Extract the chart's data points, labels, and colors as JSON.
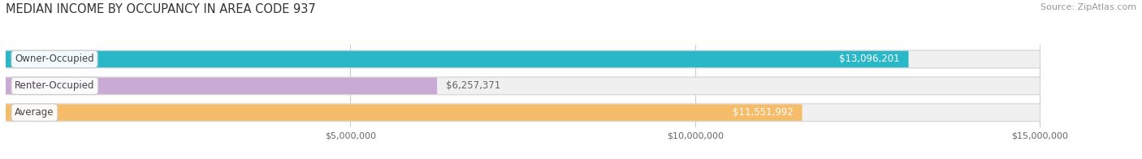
{
  "title": "MEDIAN INCOME BY OCCUPANCY IN AREA CODE 937",
  "source": "Source: ZipAtlas.com",
  "categories": [
    "Owner-Occupied",
    "Renter-Occupied",
    "Average"
  ],
  "values": [
    13096201,
    6257371,
    11551992
  ],
  "bar_colors": [
    "#2ab8c8",
    "#c9aad4",
    "#f5bc6a"
  ],
  "value_labels": [
    "$13,096,201",
    "$6,257,371",
    "$11,551,992"
  ],
  "value_label_colors": [
    "#ffffff",
    "#666666",
    "#ffffff"
  ],
  "xlim": [
    0,
    16400000
  ],
  "max_display": 15000000,
  "xticks": [
    5000000,
    10000000,
    15000000
  ],
  "xtick_labels": [
    "$5,000,000",
    "$10,000,000",
    "$15,000,000"
  ],
  "background_color": "#ffffff",
  "bar_bg_color": "#ebebeb",
  "bar_border_color": "#dddddd",
  "title_fontsize": 10.5,
  "source_fontsize": 8,
  "bar_height": 0.62,
  "bar_gap": 0.38,
  "label_fontsize": 8.5,
  "value_fontsize": 8.5
}
